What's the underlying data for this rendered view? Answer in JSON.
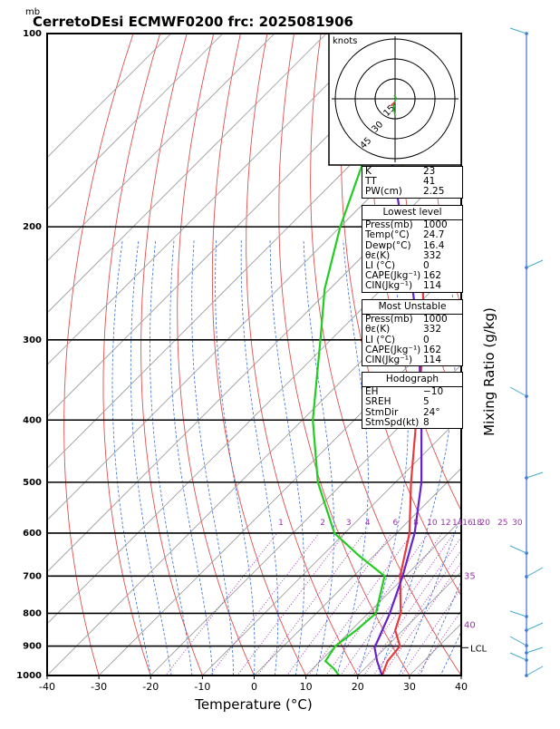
{
  "title": "CerretoDEsi ECMWF0200  frc: 2025081906",
  "y_unit": "mb",
  "chart_data": {
    "type": "line",
    "subtype": "skew-t log-p",
    "xlabel": "Temperature (°C)",
    "ylabel": "Mixing Ratio (g/kg)",
    "x_ticks": [
      -40,
      -30,
      -20,
      -10,
      0,
      10,
      20,
      30,
      40
    ],
    "xlim": [
      -40,
      40
    ],
    "y_ticks": [
      100,
      200,
      300,
      400,
      500,
      600,
      700,
      800,
      900,
      1000
    ],
    "ylim": [
      1000,
      100
    ],
    "y_scale": "log",
    "mixing_ratio_labels": [
      "1",
      "2",
      "3",
      "4",
      "6",
      "8",
      "10",
      "12",
      "14",
      "16",
      "18",
      "20",
      "25",
      "30"
    ],
    "theta_labels": [
      "35",
      "40"
    ],
    "lcl_label": "LCL",
    "lcl_pressure": 905,
    "series": [
      {
        "name": "Temperature",
        "color": "#e8393c",
        "values": [
          [
            1000,
            24.7
          ],
          [
            950,
            23
          ],
          [
            900,
            22.5
          ],
          [
            850,
            18.5
          ],
          [
            800,
            16.3
          ],
          [
            700,
            9
          ],
          [
            600,
            2.5
          ],
          [
            500,
            -7
          ],
          [
            400,
            -18
          ],
          [
            300,
            -32
          ],
          [
            250,
            -42
          ],
          [
            200,
            -45
          ],
          [
            150,
            -48
          ],
          [
            100,
            -52
          ]
        ]
      },
      {
        "name": "Dewpoint",
        "color": "#22cc22",
        "values": [
          [
            1000,
            16.4
          ],
          [
            975,
            14
          ],
          [
            950,
            11
          ],
          [
            900,
            10
          ],
          [
            850,
            11
          ],
          [
            800,
            11.5
          ],
          [
            700,
            6
          ],
          [
            650,
            -3
          ],
          [
            600,
            -12
          ],
          [
            500,
            -25
          ],
          [
            400,
            -38
          ],
          [
            300,
            -52
          ],
          [
            250,
            -61
          ],
          [
            200,
            -70
          ],
          [
            150,
            -80
          ],
          [
            100,
            -93
          ]
        ]
      },
      {
        "name": "Parcel",
        "color": "#6622cc",
        "values": [
          [
            1000,
            24.7
          ],
          [
            950,
            21
          ],
          [
            905,
            17.9
          ],
          [
            850,
            16
          ],
          [
            800,
            14.2
          ],
          [
            700,
            9.5
          ],
          [
            600,
            3.5
          ],
          [
            500,
            -5
          ],
          [
            400,
            -17
          ],
          [
            300,
            -33
          ],
          [
            250,
            -44
          ],
          [
            200,
            -58
          ],
          [
            150,
            -76
          ],
          [
            120,
            -90
          ]
        ]
      }
    ],
    "hodograph": {
      "unit_label": "knots",
      "ring_labels": [
        "15",
        "30",
        "45"
      ]
    },
    "indices": {
      "K": "23",
      "TT": "41",
      "PW(cm)": "2.25"
    },
    "lowest_level": {
      "header": "Lowest level",
      "rows": [
        [
          "Press(mb)",
          "1000"
        ],
        [
          "Temp(°C)",
          "24.7"
        ],
        [
          "Dewp(°C)",
          "16.4"
        ],
        [
          "θε(K)",
          "332"
        ],
        [
          "LI (°C)",
          "0"
        ],
        [
          "CAPE(Jkg⁻¹)",
          "162"
        ],
        [
          "CIN(Jkg⁻¹)",
          "114"
        ]
      ]
    },
    "most_unstable": {
      "header": "Most Unstable",
      "rows": [
        [
          "Press(mb)",
          "1000"
        ],
        [
          "θε(K)",
          "332"
        ],
        [
          "LI (°C)",
          "0"
        ],
        [
          "CAPE(Jkg⁻¹)",
          "162"
        ],
        [
          "CIN(Jkg⁻¹)",
          "114"
        ]
      ]
    },
    "hodograph_box": {
      "header": "Hodograph",
      "rows": [
        [
          "EH",
          "−10"
        ],
        [
          "SREH",
          "5"
        ],
        [
          "StmDir",
          "24°"
        ],
        [
          "StmSpd(kt)",
          "8"
        ]
      ]
    }
  }
}
